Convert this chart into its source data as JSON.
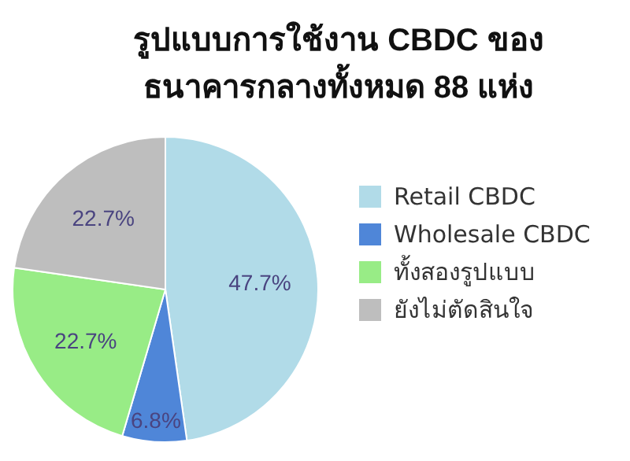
{
  "chart_data": {
    "type": "pie",
    "title": "รูปแบบการใช้งาน CBDC ของ ธนาคารกลางทั้งหมด 88 แห่ง",
    "categories": [
      "Retail CBDC",
      "Wholesale CBDC",
      "ทั้งสองรูปแบบ",
      "ยังไม่ตัดสินใจ"
    ],
    "values": [
      47.7,
      6.8,
      22.7,
      22.7
    ],
    "value_labels": [
      "47.7%",
      "6.8%",
      "22.7%",
      "22.7%"
    ],
    "colors": [
      "#b1dbe8",
      "#4f86d8",
      "#98ec86",
      "#bebebe"
    ],
    "legend": "right"
  }
}
